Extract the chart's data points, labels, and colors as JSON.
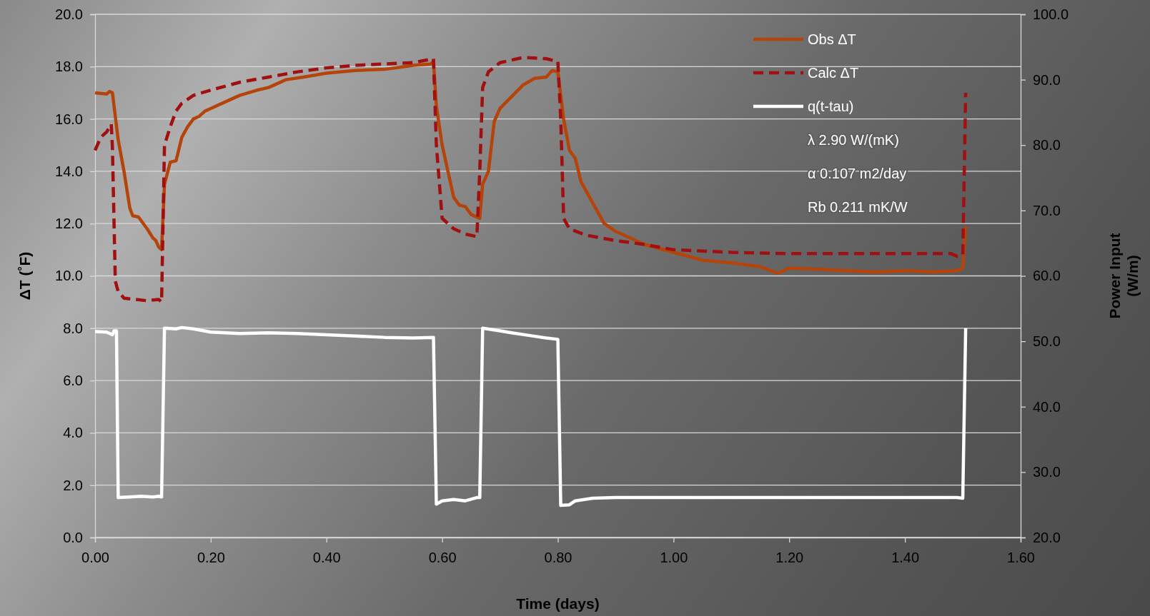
{
  "chart_data": {
    "type": "line",
    "xlabel": "Time (days)",
    "ylabel": "ΔT (˚F)",
    "y2label": "Power Input (W/m)",
    "xlim": [
      0,
      1.6
    ],
    "xticks": [
      {
        "value": 0,
        "label": "0.00"
      },
      {
        "value": 0.2,
        "label": "0.20"
      },
      {
        "value": 0.4,
        "label": "0.40"
      },
      {
        "value": 0.6,
        "label": "0.60"
      },
      {
        "value": 0.8,
        "label": "0.80"
      },
      {
        "value": 1,
        "label": "1.00"
      },
      {
        "value": 1.2,
        "label": "1.20"
      },
      {
        "value": 1.4,
        "label": "1.40"
      },
      {
        "value": 1.6,
        "label": "1.60"
      }
    ],
    "ylim": [
      0,
      20
    ],
    "yticks": [
      {
        "value": 0,
        "label": "0.0"
      },
      {
        "value": 2,
        "label": "2.0"
      },
      {
        "value": 4,
        "label": "4.0"
      },
      {
        "value": 6,
        "label": "6.0"
      },
      {
        "value": 8,
        "label": "8.0"
      },
      {
        "value": 10,
        "label": "10.0"
      },
      {
        "value": 12,
        "label": "12.0"
      },
      {
        "value": 14,
        "label": "14.0"
      },
      {
        "value": 16,
        "label": "16.0"
      },
      {
        "value": 18,
        "label": "18.0"
      },
      {
        "value": 20,
        "label": "20.0"
      }
    ],
    "y2lim": [
      20,
      100
    ],
    "y2ticks": [
      {
        "value": 20,
        "label": "20.0"
      },
      {
        "value": 30,
        "label": "30.0"
      },
      {
        "value": 40,
        "label": "40.0"
      },
      {
        "value": 50,
        "label": "50.0"
      },
      {
        "value": 60,
        "label": "60.0"
      },
      {
        "value": 70,
        "label": "70.0"
      },
      {
        "value": 80,
        "label": "80.0"
      },
      {
        "value": 90,
        "label": "90.0"
      },
      {
        "value": 100,
        "label": "100.0"
      }
    ],
    "grid": "y",
    "legend": "top right",
    "marker": "none",
    "annotations": [
      "λ 2.90 W/(mK)",
      "α 0.107 m2/day",
      "Rb 0.211 mK/W"
    ],
    "series": [
      {
        "name": "Obs ΔT",
        "color": "#b5440a",
        "line_style": "solid",
        "x": [
          0,
          0.02,
          0.025,
          0.03,
          0.04,
          0.05,
          0.06,
          0.065,
          0.075,
          0.09,
          0.1,
          0.105,
          0.11,
          0.115,
          0.12,
          0.13,
          0.14,
          0.15,
          0.16,
          0.17,
          0.18,
          0.19,
          0.2,
          0.22,
          0.25,
          0.28,
          0.3,
          0.33,
          0.36,
          0.4,
          0.45,
          0.5,
          0.52,
          0.55,
          0.58,
          0.585,
          0.59,
          0.6,
          0.61,
          0.62,
          0.63,
          0.64,
          0.65,
          0.665,
          0.67,
          0.68,
          0.69,
          0.7,
          0.72,
          0.74,
          0.76,
          0.78,
          0.79,
          0.8,
          0.81,
          0.82,
          0.83,
          0.84,
          0.86,
          0.88,
          0.9,
          0.92,
          0.95,
          1.0,
          1.05,
          1.1,
          1.15,
          1.18,
          1.2,
          1.25,
          1.3,
          1.35,
          1.4,
          1.45,
          1.49,
          1.5,
          1.505
        ],
        "values": [
          17.0,
          16.95,
          17.05,
          17.0,
          15.2,
          14.0,
          12.6,
          12.3,
          12.25,
          11.8,
          11.45,
          11.35,
          11.1,
          11.0,
          13.5,
          14.35,
          14.4,
          15.3,
          15.7,
          16.0,
          16.1,
          16.3,
          16.4,
          16.6,
          16.9,
          17.1,
          17.2,
          17.5,
          17.6,
          17.75,
          17.85,
          17.9,
          17.95,
          18.05,
          18.1,
          18.2,
          16.5,
          15.0,
          14.0,
          13.0,
          12.7,
          12.65,
          12.35,
          12.2,
          13.5,
          14.0,
          15.9,
          16.4,
          16.85,
          17.3,
          17.55,
          17.6,
          17.85,
          17.8,
          16.0,
          14.8,
          14.5,
          13.6,
          12.8,
          12.0,
          11.7,
          11.5,
          11.2,
          10.9,
          10.6,
          10.5,
          10.35,
          10.1,
          10.3,
          10.25,
          10.2,
          10.15,
          10.2,
          10.15,
          10.2,
          10.3,
          11.9
        ]
      },
      {
        "name": "Calc ΔT",
        "color": "#a01010",
        "line_style": "dashed",
        "x": [
          0,
          0.01,
          0.02,
          0.028,
          0.03,
          0.035,
          0.04,
          0.05,
          0.07,
          0.09,
          0.11,
          0.115,
          0.12,
          0.13,
          0.14,
          0.15,
          0.17,
          0.2,
          0.25,
          0.3,
          0.35,
          0.4,
          0.45,
          0.5,
          0.55,
          0.585,
          0.59,
          0.6,
          0.62,
          0.64,
          0.66,
          0.665,
          0.67,
          0.68,
          0.7,
          0.72,
          0.74,
          0.78,
          0.8,
          0.805,
          0.81,
          0.82,
          0.85,
          0.9,
          0.95,
          1.0,
          1.05,
          1.1,
          1.2,
          1.3,
          1.4,
          1.48,
          1.49,
          1.5,
          1.505
        ],
        "values": [
          14.8,
          15.3,
          15.5,
          15.8,
          14.9,
          9.8,
          9.4,
          9.15,
          9.1,
          9.05,
          9.1,
          9.0,
          15.0,
          15.7,
          16.3,
          16.6,
          16.9,
          17.1,
          17.4,
          17.6,
          17.8,
          17.95,
          18.05,
          18.1,
          18.15,
          18.3,
          15.0,
          12.2,
          11.8,
          11.6,
          11.5,
          14.0,
          17.2,
          17.8,
          18.15,
          18.25,
          18.35,
          18.3,
          18.2,
          16.0,
          12.2,
          11.8,
          11.55,
          11.35,
          11.2,
          11.0,
          10.95,
          10.9,
          10.85,
          10.85,
          10.85,
          10.85,
          10.75,
          10.8,
          17.0
        ]
      },
      {
        "name": "q(t-tau)",
        "color": "#ffffff",
        "line_style": "solid",
        "axis": "y2",
        "x": [
          0,
          0.02,
          0.03,
          0.033,
          0.037,
          0.04,
          0.06,
          0.08,
          0.1,
          0.11,
          0.115,
          0.12,
          0.14,
          0.15,
          0.17,
          0.2,
          0.25,
          0.3,
          0.35,
          0.4,
          0.45,
          0.5,
          0.55,
          0.585,
          0.59,
          0.6,
          0.62,
          0.64,
          0.66,
          0.665,
          0.67,
          0.7,
          0.72,
          0.75,
          0.78,
          0.8,
          0.805,
          0.82,
          0.83,
          0.86,
          0.9,
          1.0,
          1.2,
          1.4,
          1.49,
          1.5,
          1.505
        ],
        "values": [
          51.5,
          51.4,
          51.0,
          51.6,
          51.6,
          26.1,
          26.2,
          26.3,
          26.2,
          26.3,
          26.2,
          52.0,
          51.9,
          52.1,
          51.9,
          51.4,
          51.2,
          51.3,
          51.2,
          51.0,
          50.8,
          50.6,
          50.5,
          50.6,
          25.1,
          25.6,
          25.8,
          25.6,
          26.1,
          26.1,
          52.0,
          51.6,
          51.3,
          50.9,
          50.5,
          50.3,
          24.9,
          25.0,
          25.6,
          26.0,
          26.1,
          26.1,
          26.1,
          26.1,
          26.1,
          26.0,
          52.0
        ]
      }
    ]
  }
}
